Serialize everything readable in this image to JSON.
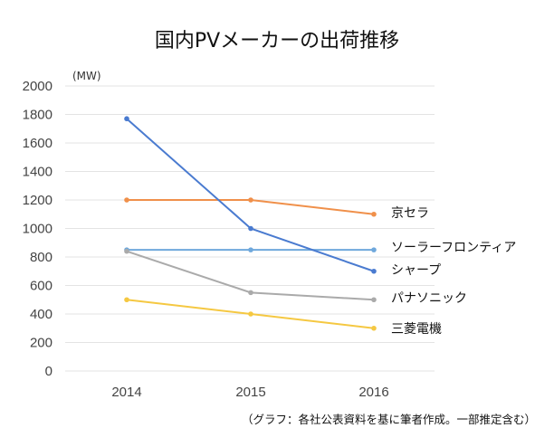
{
  "chart_data": {
    "type": "line",
    "title": "国内PVメーカーの出荷推移",
    "unit_label": "(MW)",
    "xlabel": "",
    "ylabel": "",
    "x": [
      "2014",
      "2015",
      "2016"
    ],
    "ylim": [
      0,
      2000
    ],
    "yticks": [
      0,
      200,
      400,
      600,
      800,
      1000,
      1200,
      1400,
      1600,
      1800,
      2000
    ],
    "grid": true,
    "legend": "right-inline",
    "series": [
      {
        "name": "京セラ",
        "color": "#f0904a",
        "values": [
          1200,
          1200,
          1100
        ]
      },
      {
        "name": "ソーラーフロンティア",
        "color": "#6fa8dc",
        "values": [
          850,
          850,
          850
        ]
      },
      {
        "name": "シャープ",
        "color": "#4a7bd0",
        "values": [
          1770,
          1000,
          700
        ]
      },
      {
        "name": "パナソニック",
        "color": "#aaaaaa",
        "values": [
          840,
          550,
          500
        ]
      },
      {
        "name": "三菱電機",
        "color": "#f5c842",
        "values": [
          500,
          400,
          300
        ]
      }
    ],
    "note": "（グラフ：各社公表資料を基に筆者作成。一部推定含む）"
  }
}
